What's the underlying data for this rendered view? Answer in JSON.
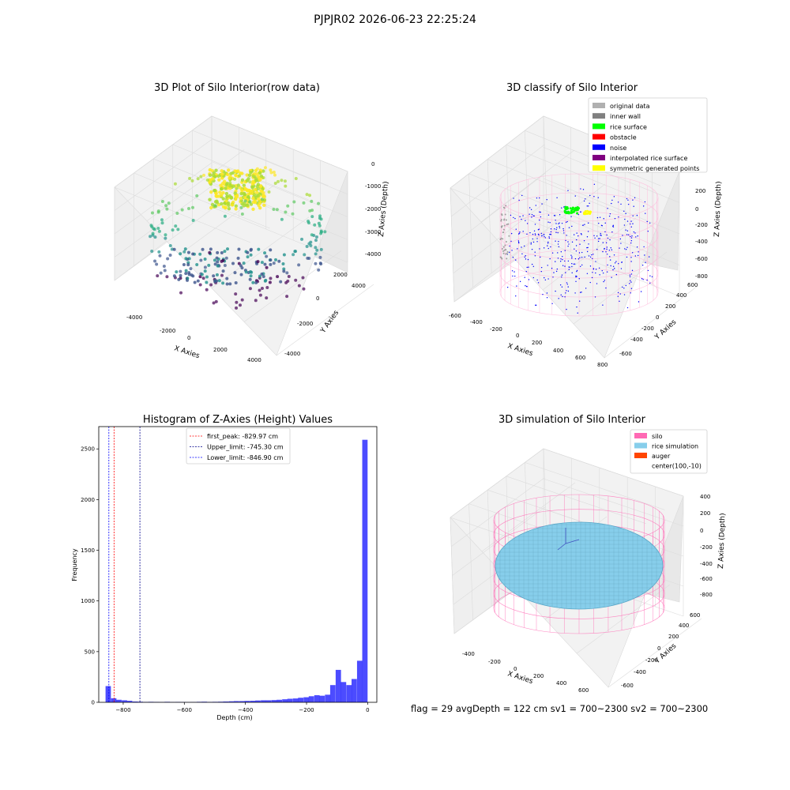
{
  "suptitle": "PJPJR02 2026-06-23 22:25:24",
  "panels": {
    "raw": {
      "title": "3D Plot of Silo Interior(row data)",
      "xlabel": "X Axies",
      "ylabel": "Y Axies",
      "zlabel": "Z Axies (Depth)",
      "xticks": [
        "-4000",
        "-2000",
        "0",
        "2000",
        "4000"
      ],
      "yticks": [
        "-4000",
        "-2000",
        "0",
        "2000",
        "4000"
      ],
      "zticks": [
        "0",
        "-1000",
        "-2000",
        "-3000",
        "-4000"
      ]
    },
    "classify": {
      "title": "3D classify of Silo Interior",
      "xlabel": "X Axies",
      "ylabel": "Y Axies",
      "zlabel": "Z Axies (Depth)",
      "xticks": [
        "-600",
        "-400",
        "-200",
        "0",
        "200",
        "400",
        "600",
        "800"
      ],
      "yticks": [
        "600",
        "400",
        "200",
        "0",
        "-200",
        "-400",
        "-600"
      ],
      "zticks": [
        "200",
        "0",
        "-200",
        "-400",
        "-600",
        "-800"
      ],
      "legend": [
        {
          "label": "original data",
          "color": "#b0b0b0"
        },
        {
          "label": "inner wall",
          "color": "#808080"
        },
        {
          "label": "rice surface",
          "color": "#00ff00"
        },
        {
          "label": "obstacle",
          "color": "#ff0000"
        },
        {
          "label": "noise",
          "color": "#0000ff"
        },
        {
          "label": "interpolated rice surface",
          "color": "#800080"
        },
        {
          "label": "symmetric generated points",
          "color": "#ffff00"
        }
      ]
    },
    "simulation": {
      "title": "3D simulation of Silo Interior",
      "xlabel": "X Axies",
      "ylabel": "Y Axies",
      "zlabel": "Z Axies (Depth)",
      "xticks": [
        "-400",
        "-200",
        "0",
        "200",
        "400",
        "600"
      ],
      "yticks": [
        "600",
        "400",
        "200",
        "0",
        "-200",
        "-400",
        "-600"
      ],
      "zticks": [
        "400",
        "200",
        "0",
        "-200",
        "-400",
        "-600",
        "-800"
      ],
      "legend": [
        {
          "label": "silo",
          "color": "#ff69b4"
        },
        {
          "label": "rice simulation",
          "color": "#87ceeb"
        },
        {
          "label": "auger",
          "color": "#ff4500"
        },
        {
          "label": "center(100,-10)",
          "color": ""
        }
      ]
    }
  },
  "chart_data": {
    "type": "bar",
    "title": "Histogram of Z-Axies (Height) Values",
    "xlabel": "Depth (cm)",
    "ylabel": "Frequency",
    "xlim": [
      -880,
      30
    ],
    "ylim": [
      0,
      2720
    ],
    "xticks": [
      -800,
      -600,
      -400,
      -200,
      0
    ],
    "yticks": [
      0,
      500,
      1000,
      1500,
      2000,
      2500
    ],
    "bar_color": "#0000ff",
    "bin_width": 17.5,
    "bins": [
      {
        "x": -849,
        "count": 160
      },
      {
        "x": -831,
        "count": 40
      },
      {
        "x": -814,
        "count": 25
      },
      {
        "x": -796,
        "count": 20
      },
      {
        "x": -779,
        "count": 15
      },
      {
        "x": -761,
        "count": 8
      },
      {
        "x": -744,
        "count": 6
      },
      {
        "x": -726,
        "count": 4
      },
      {
        "x": -709,
        "count": 5
      },
      {
        "x": -691,
        "count": 4
      },
      {
        "x": -674,
        "count": 3
      },
      {
        "x": -656,
        "count": 5
      },
      {
        "x": -639,
        "count": 3
      },
      {
        "x": -621,
        "count": 4
      },
      {
        "x": -604,
        "count": 3
      },
      {
        "x": -586,
        "count": 2
      },
      {
        "x": -569,
        "count": 3
      },
      {
        "x": -551,
        "count": 5
      },
      {
        "x": -534,
        "count": 6
      },
      {
        "x": -516,
        "count": 4
      },
      {
        "x": -499,
        "count": 5
      },
      {
        "x": -481,
        "count": 6
      },
      {
        "x": -464,
        "count": 8
      },
      {
        "x": -446,
        "count": 10
      },
      {
        "x": -429,
        "count": 12
      },
      {
        "x": -411,
        "count": 12
      },
      {
        "x": -394,
        "count": 14
      },
      {
        "x": -376,
        "count": 15
      },
      {
        "x": -359,
        "count": 18
      },
      {
        "x": -341,
        "count": 20
      },
      {
        "x": -324,
        "count": 20
      },
      {
        "x": -306,
        "count": 22
      },
      {
        "x": -289,
        "count": 25
      },
      {
        "x": -271,
        "count": 30
      },
      {
        "x": -254,
        "count": 35
      },
      {
        "x": -236,
        "count": 38
      },
      {
        "x": -219,
        "count": 45
      },
      {
        "x": -201,
        "count": 50
      },
      {
        "x": -184,
        "count": 60
      },
      {
        "x": -166,
        "count": 70
      },
      {
        "x": -149,
        "count": 65
      },
      {
        "x": -131,
        "count": 75
      },
      {
        "x": -114,
        "count": 170
      },
      {
        "x": -96,
        "count": 320
      },
      {
        "x": -79,
        "count": 200
      },
      {
        "x": -61,
        "count": 170
      },
      {
        "x": -44,
        "count": 230
      },
      {
        "x": -26,
        "count": 410
      },
      {
        "x": -9,
        "count": 2590
      }
    ],
    "vlines": [
      {
        "label": "first_peak: -829.97 cm",
        "x": -829.97,
        "color": "#ff0000"
      },
      {
        "label": "Upper_limit: -745.30 cm",
        "x": -745.3,
        "color": "#00008b"
      },
      {
        "label": "Lower_limit: -846.90 cm",
        "x": -846.9,
        "color": "#0000ff"
      }
    ]
  },
  "footer": "flag = 29  avgDepth = 122 cm  sv1 = 700~2300  sv2 = 700~2300"
}
